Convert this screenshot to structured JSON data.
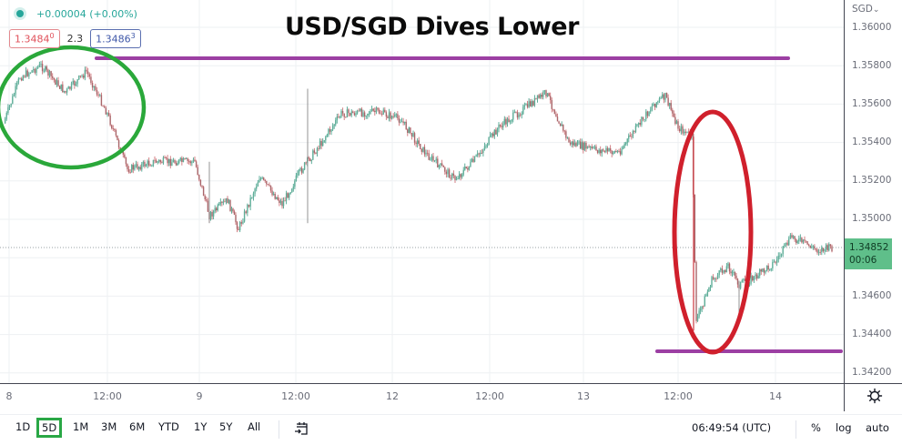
{
  "header": {
    "status_dot_color": "#26a69a",
    "change_text": "+0.00004 (+0.00%)",
    "sell_price": "1.3484",
    "sell_price_sup": "0",
    "spread": "2.3",
    "buy_price": "1.3486",
    "buy_price_sup": "3"
  },
  "annotation": {
    "title": "USD/SGD Dives Lower"
  },
  "price_axis": {
    "currency": "SGD",
    "currency_caret": "⌄",
    "ticks": [
      "1.36000",
      "1.35800",
      "1.35600",
      "1.35400",
      "1.35200",
      "1.35000",
      "1.34600",
      "1.34400",
      "1.34200"
    ],
    "last_price": "1.34852",
    "countdown": "00:06",
    "last_price_bg": "#5fbf8a"
  },
  "time_axis": {
    "ticks": [
      "8",
      "12:00",
      "9",
      "12:00",
      "12",
      "12:00",
      "13",
      "12:00",
      "14"
    ]
  },
  "bottom_bar": {
    "ranges": [
      "1D",
      "5D",
      "1M",
      "3M",
      "6M",
      "YTD",
      "1Y",
      "5Y",
      "All"
    ],
    "active_range": "5D",
    "clock": "06:49:54 (UTC)",
    "percent_label": "%",
    "log_label": "log",
    "auto_label": "auto"
  },
  "colors": {
    "up": "#26a69a",
    "down": "#ef5350",
    "resistance_line": "#9c3fa3",
    "support_line": "#9c3fa3",
    "green_ellipse": "#2aa83a",
    "red_ellipse": "#d0202c",
    "active_range_border": "#29a745"
  },
  "chart_data": {
    "type": "line",
    "title": "USD/SGD Dives Lower",
    "symbol": "USD/SGD",
    "timeframe": "5D",
    "xlabel": "",
    "ylabel": "SGD",
    "ylim": [
      1.3418,
      1.3607
    ],
    "x_tick_labels": [
      "8",
      "12:00",
      "9",
      "12:00",
      "12",
      "12:00",
      "13",
      "12:00",
      "14"
    ],
    "y_tick_labels": [
      "1.36000",
      "1.35800",
      "1.35600",
      "1.35400",
      "1.35200",
      "1.35000",
      "1.34600",
      "1.34400",
      "1.34200"
    ],
    "grid": true,
    "series": [
      {
        "name": "USD/SGD (approx. close path)",
        "x": [
          "8 00:00",
          "8 02:00",
          "8 06:00",
          "8 09:00",
          "8 11:00",
          "8 13:00",
          "8 15:00",
          "8 18:00",
          "8 23:00",
          "9 00:00",
          "9 03:00",
          "9 06:00",
          "9 09:00",
          "9 12:00",
          "9 14:00",
          "9 16:00",
          "9 19:00",
          "9 22:00",
          "12 01:00",
          "12 04:00",
          "12 07:00",
          "12 10:00",
          "12 13:00",
          "12 15:00",
          "12 18:00",
          "12 22:00",
          "13 01:00",
          "13 04:00",
          "13 07:00",
          "13 10:00",
          "13 11:30",
          "13 12:10",
          "13 12:20",
          "13 14:00",
          "13 16:00",
          "13 17:00",
          "13 19:00",
          "13 22:00",
          "14 01:00",
          "14 05:00",
          "14 06:49"
        ],
        "values": [
          1.355,
          1.3574,
          1.358,
          1.3566,
          1.3577,
          1.3555,
          1.3526,
          1.353,
          1.353,
          1.3502,
          1.351,
          1.3495,
          1.3522,
          1.3508,
          1.3525,
          1.3538,
          1.3555,
          1.3556,
          1.3552,
          1.3534,
          1.3521,
          1.353,
          1.3548,
          1.3566,
          1.354,
          1.3536,
          1.3535,
          1.3548,
          1.356,
          1.3564,
          1.3548,
          1.3543,
          1.3447,
          1.3468,
          1.3476,
          1.3466,
          1.347,
          1.3478,
          1.3491,
          1.3484,
          1.34852
        ]
      }
    ],
    "annotations": [
      {
        "type": "hline",
        "value": 1.3584,
        "label": "resistance",
        "color": "#9c3fa3"
      },
      {
        "type": "hline",
        "value": 1.3443,
        "label": "support",
        "color": "#9c3fa3"
      },
      {
        "type": "ellipse",
        "region": "8 00:00–8 14:00 highs",
        "color": "#2aa83a"
      },
      {
        "type": "ellipse",
        "region": "13 12:00 dive",
        "color": "#d0202c"
      }
    ],
    "last_price": 1.34852
  }
}
